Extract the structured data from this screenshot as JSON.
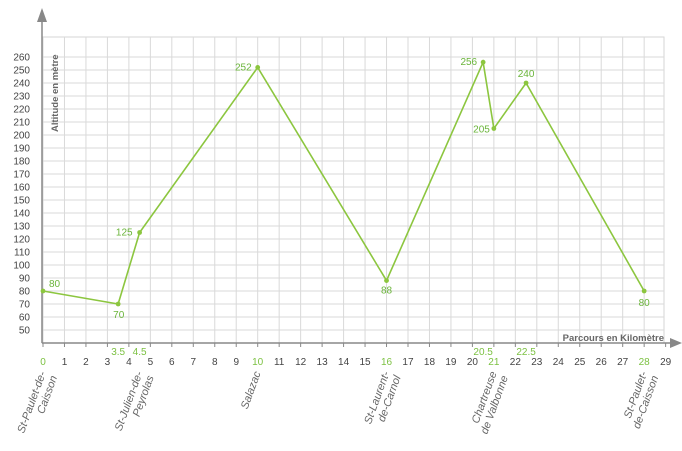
{
  "chart_data": {
    "type": "line",
    "xlabel": "Parcours en Kilomètre",
    "ylabel": "Altitude en mètre",
    "xlim": [
      0,
      29
    ],
    "ylim": [
      45,
      260
    ],
    "y_ticks": [
      50,
      60,
      70,
      80,
      90,
      100,
      110,
      120,
      130,
      140,
      150,
      160,
      170,
      180,
      190,
      200,
      210,
      220,
      230,
      240,
      250,
      260
    ],
    "x_ticks": [
      0,
      1,
      2,
      3,
      4,
      5,
      6,
      7,
      8,
      9,
      10,
      11,
      12,
      13,
      14,
      15,
      16,
      17,
      18,
      19,
      20,
      21,
      22,
      23,
      24,
      25,
      26,
      27,
      28,
      29
    ],
    "x_ticks_highlighted": [
      0,
      10,
      16,
      21,
      28
    ],
    "x_extra_labels": [
      "3.5",
      "4.5",
      "20.5",
      "22.5"
    ],
    "grid": true,
    "line_color": "#8cc63f",
    "highlight_color": "#7cc142",
    "points": [
      {
        "x": 0,
        "y": 80,
        "label": "80"
      },
      {
        "x": 3.5,
        "y": 70,
        "label": "70"
      },
      {
        "x": 4.5,
        "y": 125,
        "label": "125"
      },
      {
        "x": 10,
        "y": 252,
        "label": "252"
      },
      {
        "x": 16,
        "y": 88,
        "label": "88"
      },
      {
        "x": 20.5,
        "y": 256,
        "label": "256"
      },
      {
        "x": 21,
        "y": 205,
        "label": "205"
      },
      {
        "x": 22.5,
        "y": 240,
        "label": "240"
      },
      {
        "x": 28,
        "y": 80,
        "label": "80"
      }
    ],
    "places": [
      {
        "x": 0,
        "lines": [
          "St-Paulet-de-",
          "Caisson"
        ]
      },
      {
        "x": 4.5,
        "lines": [
          "St-Julien-de-",
          "Peyrolas"
        ]
      },
      {
        "x": 10,
        "lines": [
          "Salazac"
        ]
      },
      {
        "x": 16,
        "lines": [
          "St-Laurent-",
          "de-Carnol"
        ]
      },
      {
        "x": 21,
        "lines": [
          "Chartreuse",
          "de Valbonne"
        ]
      },
      {
        "x": 28,
        "lines": [
          "St-Paulet-",
          "de-Caisson"
        ]
      }
    ]
  }
}
